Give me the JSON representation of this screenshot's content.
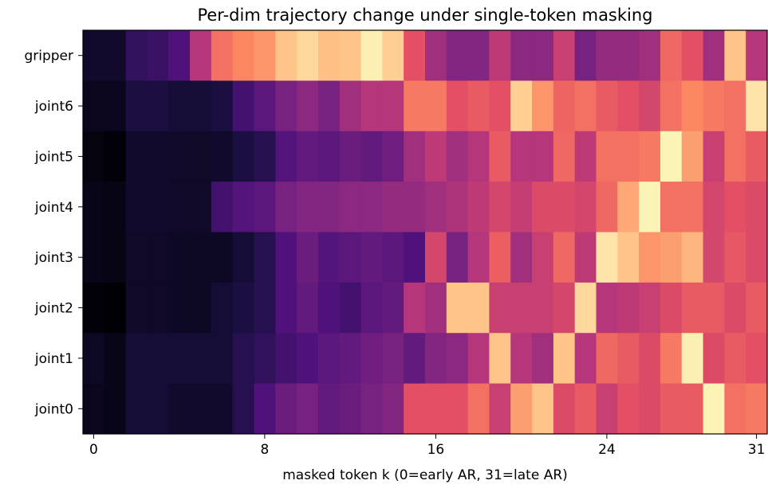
{
  "chart_data": {
    "type": "heatmap",
    "title": "Per-dim trajectory change under single-token masking",
    "xlabel": "masked token k (0=early AR, 31=late AR)",
    "ylabel": "",
    "colormap": "magma",
    "value_range": [
      0,
      1
    ],
    "x_ticks": [
      0,
      8,
      16,
      24,
      31
    ],
    "x_range": [
      0,
      31
    ],
    "rows": [
      "gripper",
      "joint6",
      "joint5",
      "joint4",
      "joint3",
      "joint2",
      "joint1",
      "joint0"
    ],
    "values": [
      [
        0.08,
        0.08,
        0.18,
        0.2,
        0.25,
        0.5,
        0.7,
        0.75,
        0.78,
        0.88,
        0.92,
        0.87,
        0.88,
        0.97,
        0.9,
        0.62,
        0.45,
        0.38,
        0.38,
        0.52,
        0.4,
        0.4,
        0.55,
        0.35,
        0.42,
        0.42,
        0.45,
        0.68,
        0.62,
        0.45,
        0.88,
        0.5
      ],
      [
        0.05,
        0.05,
        0.12,
        0.12,
        0.1,
        0.1,
        0.12,
        0.22,
        0.28,
        0.35,
        0.4,
        0.35,
        0.45,
        0.5,
        0.5,
        0.72,
        0.72,
        0.62,
        0.65,
        0.62,
        0.9,
        0.78,
        0.67,
        0.7,
        0.65,
        0.62,
        0.58,
        0.7,
        0.75,
        0.72,
        0.7,
        0.95
      ],
      [
        0.02,
        0.01,
        0.08,
        0.08,
        0.07,
        0.07,
        0.08,
        0.12,
        0.15,
        0.26,
        0.3,
        0.28,
        0.32,
        0.3,
        0.33,
        0.45,
        0.52,
        0.45,
        0.5,
        0.65,
        0.5,
        0.5,
        0.68,
        0.52,
        0.7,
        0.7,
        0.72,
        0.98,
        0.8,
        0.55,
        0.7,
        0.65
      ],
      [
        0.04,
        0.03,
        0.08,
        0.08,
        0.07,
        0.07,
        0.22,
        0.26,
        0.28,
        0.35,
        0.38,
        0.38,
        0.4,
        0.4,
        0.42,
        0.42,
        0.45,
        0.48,
        0.52,
        0.58,
        0.54,
        0.6,
        0.6,
        0.58,
        0.68,
        0.82,
        0.98,
        0.7,
        0.7,
        0.58,
        0.62,
        0.6
      ],
      [
        0.04,
        0.03,
        0.07,
        0.07,
        0.06,
        0.06,
        0.06,
        0.1,
        0.15,
        0.25,
        0.32,
        0.26,
        0.28,
        0.3,
        0.28,
        0.25,
        0.58,
        0.35,
        0.5,
        0.66,
        0.45,
        0.55,
        0.68,
        0.52,
        0.95,
        0.88,
        0.78,
        0.8,
        0.85,
        0.58,
        0.64,
        0.6
      ],
      [
        0.01,
        0.0,
        0.07,
        0.07,
        0.06,
        0.06,
        0.1,
        0.12,
        0.15,
        0.25,
        0.3,
        0.25,
        0.22,
        0.28,
        0.3,
        0.5,
        0.45,
        0.88,
        0.88,
        0.55,
        0.55,
        0.55,
        0.58,
        0.92,
        0.5,
        0.52,
        0.55,
        0.6,
        0.65,
        0.65,
        0.6,
        0.65
      ],
      [
        0.06,
        0.04,
        0.1,
        0.1,
        0.1,
        0.1,
        0.1,
        0.15,
        0.18,
        0.22,
        0.25,
        0.28,
        0.3,
        0.33,
        0.35,
        0.3,
        0.38,
        0.4,
        0.5,
        0.88,
        0.5,
        0.45,
        0.88,
        0.5,
        0.68,
        0.65,
        0.6,
        0.72,
        0.97,
        0.6,
        0.65,
        0.62
      ],
      [
        0.05,
        0.04,
        0.1,
        0.1,
        0.08,
        0.08,
        0.08,
        0.15,
        0.25,
        0.32,
        0.35,
        0.3,
        0.32,
        0.35,
        0.38,
        0.62,
        0.62,
        0.62,
        0.7,
        0.55,
        0.8,
        0.88,
        0.6,
        0.65,
        0.55,
        0.62,
        0.6,
        0.65,
        0.65,
        0.98,
        0.7,
        0.72
      ]
    ]
  }
}
